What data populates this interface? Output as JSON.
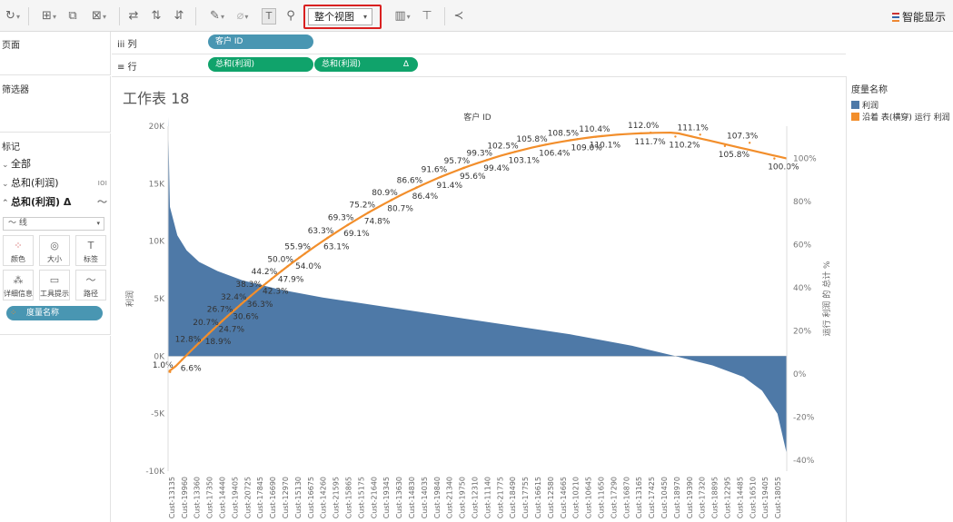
{
  "toolbar": {
    "view_select": "整个视图",
    "smart_display": "智能显示"
  },
  "left": {
    "pages_title": "页面",
    "filters_title": "筛选器",
    "marks_title": "标记",
    "marks_rows": [
      {
        "label": "全部",
        "chev": "⌄"
      },
      {
        "label": "总和(利润)",
        "chev": "⌄"
      },
      {
        "label": "总和(利润)  Δ",
        "chev": "⌃"
      }
    ],
    "mark_type": "线",
    "mark_buttons": [
      "颜色",
      "大小",
      "标签",
      "详细信息",
      "工具提示",
      "路径"
    ],
    "color_pill": "度量名称"
  },
  "shelves": {
    "columns_label": "列",
    "rows_label": "行",
    "columns_pill": "客户 ID",
    "rows_pill_1": "总和(利润)",
    "rows_pill_2": "总和(利润)",
    "rows_pill_2_delta": "Δ"
  },
  "legend": {
    "title": "度量名称",
    "items": [
      {
        "label": "利润",
        "color": "#4e79a7"
      },
      {
        "label": "沿着 表(横穿) 运行 利润",
        "color": "#f28e2b"
      }
    ]
  },
  "worksheet": {
    "title": "工作表 18"
  },
  "chart_data": {
    "type": "bar",
    "x_axis_title": "客户 ID",
    "y_left_label": "利润",
    "y_right_label": "运行 利润 的 总计 %",
    "y_left_ticks": [
      "20K",
      "15K",
      "10K",
      "5K",
      "0K",
      "-5K",
      "-10K"
    ],
    "y_right_ticks": [
      "100%",
      "80%",
      "60%",
      "40%",
      "20%",
      "0%",
      "-20%",
      "-40%"
    ],
    "ylim_left": [
      -10000,
      20000
    ],
    "ylim_right": [
      -45,
      115
    ],
    "bar_color": "#4e79a7",
    "line_color": "#f28e2b",
    "bar_profile": [
      [
        0,
        20800
      ],
      [
        0.3,
        13000
      ],
      [
        1.5,
        10500
      ],
      [
        3,
        9200
      ],
      [
        5,
        8200
      ],
      [
        8,
        7400
      ],
      [
        12,
        6600
      ],
      [
        18,
        5800
      ],
      [
        25,
        5100
      ],
      [
        35,
        4300
      ],
      [
        45,
        3500
      ],
      [
        55,
        2700
      ],
      [
        65,
        1900
      ],
      [
        75,
        900
      ],
      [
        82,
        0
      ],
      [
        88,
        -800
      ],
      [
        93,
        -1800
      ],
      [
        96,
        -3000
      ],
      [
        98.5,
        -5000
      ],
      [
        100,
        -8500
      ]
    ],
    "running_total_labels": [
      "1.0%",
      "6.6%",
      "12.8%",
      "18.9%",
      "20.7%",
      "24.7%",
      "26.7%",
      "30.6%",
      "32.4%",
      "36.3%",
      "38.3%",
      "42.3%",
      "44.2%",
      "47.9%",
      "50.0%",
      "54.0%",
      "55.9%",
      "63.1%",
      "63.3%",
      "69.1%",
      "69.3%",
      "74.8%",
      "75.2%",
      "80.7%",
      "80.9%",
      "86.4%",
      "86.6%",
      "91.4%",
      "91.6%",
      "95.6%",
      "95.7%",
      "99.4%",
      "99.3%",
      "103.1%",
      "102.5%",
      "106.4%",
      "105.8%",
      "109.0%",
      "108.5%",
      "110.1%",
      "110.4%",
      "111.7%",
      "112.0%",
      "110.2%",
      "111.1%",
      "105.8%",
      "107.3%",
      "100.0%"
    ],
    "x_tick_labels": [
      "Cust-13135",
      "Cust-19960",
      "Cust-13360",
      "Cust-17350",
      "Cust-14440",
      "Cust-19405",
      "Cust-20725",
      "Cust-17845",
      "Cust-16690",
      "Cust-12970",
      "Cust-15130",
      "Cust-16675",
      "Cust-14260",
      "Cust-21595",
      "Cust-15865",
      "Cust-15175",
      "Cust-21640",
      "Cust-19345",
      "Cust-13630",
      "Cust-14830",
      "Cust-14035",
      "Cust-19840",
      "Cust-21340",
      "Cust-19750",
      "Cust-12310",
      "Cust-11140",
      "Cust-21775",
      "Cust-18490",
      "Cust-17755",
      "Cust-16615",
      "Cust-12580",
      "Cust-14665",
      "Cust-10210",
      "Cust-10645",
      "Cust-11650",
      "Cust-17290",
      "Cust-16870",
      "Cust-13165",
      "Cust-17425",
      "Cust-10450",
      "Cust-18970",
      "Cust-19390",
      "Cust-17320",
      "Cust-18895",
      "Cust-12295",
      "Cust-14485",
      "Cust-16510",
      "Cust-19405",
      "Cust-18055"
    ]
  }
}
